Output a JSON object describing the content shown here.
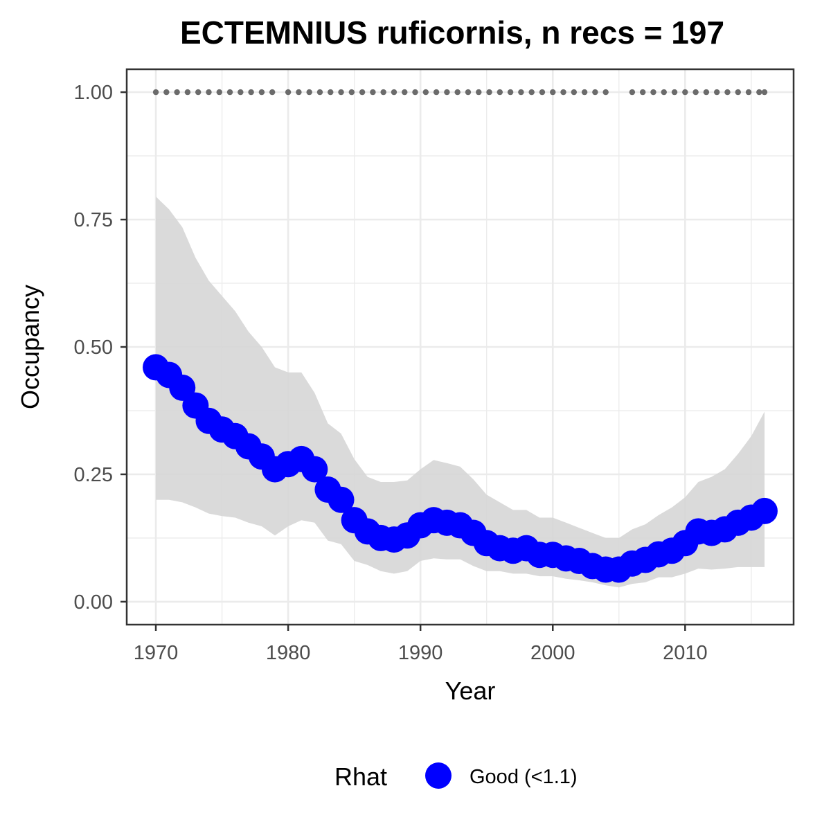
{
  "chart_data": {
    "type": "line",
    "title": "ECTEMNIUS ruficornis, n recs = 197",
    "xlabel": "Year",
    "ylabel": "Occupancy",
    "xlim": [
      1967.8,
      1977.8,
      2018.2
    ],
    "ylim": [
      -0.045,
      1.045
    ],
    "x_ticks": [
      1970,
      1980,
      1990,
      2000,
      2010
    ],
    "x_tick_labels": [
      "1970",
      "1980",
      "1990",
      "2000",
      "2010"
    ],
    "y_ticks": [
      0,
      0.25,
      0.5,
      0.75,
      1.0
    ],
    "y_tick_labels": [
      "0.00",
      "0.25",
      "0.50",
      "0.75",
      "1.00"
    ],
    "grid": true,
    "colors": {
      "series": "#0000ff",
      "ribbon": "#d6d6d6",
      "rhat_dots": "#6b6b6b",
      "grid": "#ebebeb",
      "panel_border": "#333333"
    },
    "legend": {
      "title": "Rhat",
      "placement": "bottom",
      "entries": [
        {
          "label": "Good (<1.1)",
          "color": "#0000ff"
        }
      ]
    },
    "series": [
      {
        "name": "Good (<1.1)",
        "x": [
          1970,
          1971,
          1972,
          1973,
          1974,
          1975,
          1976,
          1977,
          1978,
          1979,
          1980,
          1981,
          1982,
          1983,
          1984,
          1985,
          1986,
          1987,
          1988,
          1989,
          1990,
          1991,
          1992,
          1993,
          1994,
          1995,
          1996,
          1997,
          1998,
          1999,
          2000,
          2001,
          2002,
          2003,
          2004,
          2005,
          2006,
          2007,
          2008,
          2009,
          2010,
          2011,
          2012,
          2013,
          2014,
          2015,
          2016
        ],
        "y": [
          0.46,
          0.445,
          0.42,
          0.385,
          0.355,
          0.338,
          0.325,
          0.305,
          0.285,
          0.26,
          0.27,
          0.28,
          0.26,
          0.22,
          0.2,
          0.16,
          0.138,
          0.125,
          0.122,
          0.13,
          0.15,
          0.16,
          0.155,
          0.15,
          0.135,
          0.115,
          0.105,
          0.1,
          0.105,
          0.092,
          0.092,
          0.085,
          0.08,
          0.07,
          0.063,
          0.063,
          0.075,
          0.082,
          0.093,
          0.1,
          0.115,
          0.138,
          0.135,
          0.142,
          0.155,
          0.165,
          0.178
        ],
        "lower": [
          0.2,
          0.2,
          0.195,
          0.185,
          0.173,
          0.168,
          0.165,
          0.155,
          0.148,
          0.13,
          0.148,
          0.16,
          0.155,
          0.12,
          0.113,
          0.08,
          0.072,
          0.06,
          0.055,
          0.06,
          0.08,
          0.085,
          0.083,
          0.083,
          0.07,
          0.06,
          0.06,
          0.055,
          0.055,
          0.05,
          0.05,
          0.045,
          0.042,
          0.038,
          0.032,
          0.028,
          0.035,
          0.038,
          0.048,
          0.048,
          0.055,
          0.065,
          0.063,
          0.065,
          0.068,
          0.068,
          0.068
        ],
        "upper": [
          0.795,
          0.77,
          0.735,
          0.675,
          0.63,
          0.6,
          0.57,
          0.53,
          0.5,
          0.46,
          0.45,
          0.45,
          0.41,
          0.35,
          0.33,
          0.28,
          0.245,
          0.235,
          0.235,
          0.238,
          0.26,
          0.278,
          0.272,
          0.265,
          0.24,
          0.21,
          0.195,
          0.18,
          0.18,
          0.165,
          0.165,
          0.155,
          0.145,
          0.135,
          0.125,
          0.125,
          0.142,
          0.152,
          0.17,
          0.185,
          0.205,
          0.235,
          0.245,
          0.26,
          0.29,
          0.325,
          0.373
        ]
      }
    ],
    "rhat_dots": {
      "y": 1.0,
      "x": [
        1970,
        1970.8,
        1971.6,
        1972.4,
        1973.2,
        1974,
        1974.8,
        1975.6,
        1976.4,
        1977.2,
        1978.0,
        1978.8,
        1980,
        1980.8,
        1981.6,
        1982.4,
        1983.2,
        1984,
        1984.8,
        1985.6,
        1986.4,
        1987.2,
        1988,
        1988.8,
        1989.6,
        1990.4,
        1991.2,
        1992,
        1992.8,
        1993.6,
        1994.4,
        1995.2,
        1996,
        1996.8,
        1997.6,
        1998.4,
        1999.2,
        2000,
        2000.8,
        2001.6,
        2002.4,
        2003.2,
        2004,
        2006,
        2006.8,
        2007.6,
        2008.4,
        2009.2,
        2010,
        2010.8,
        2011.6,
        2012.4,
        2013.2,
        2014,
        2014.8,
        2015.6,
        2016
      ]
    }
  }
}
